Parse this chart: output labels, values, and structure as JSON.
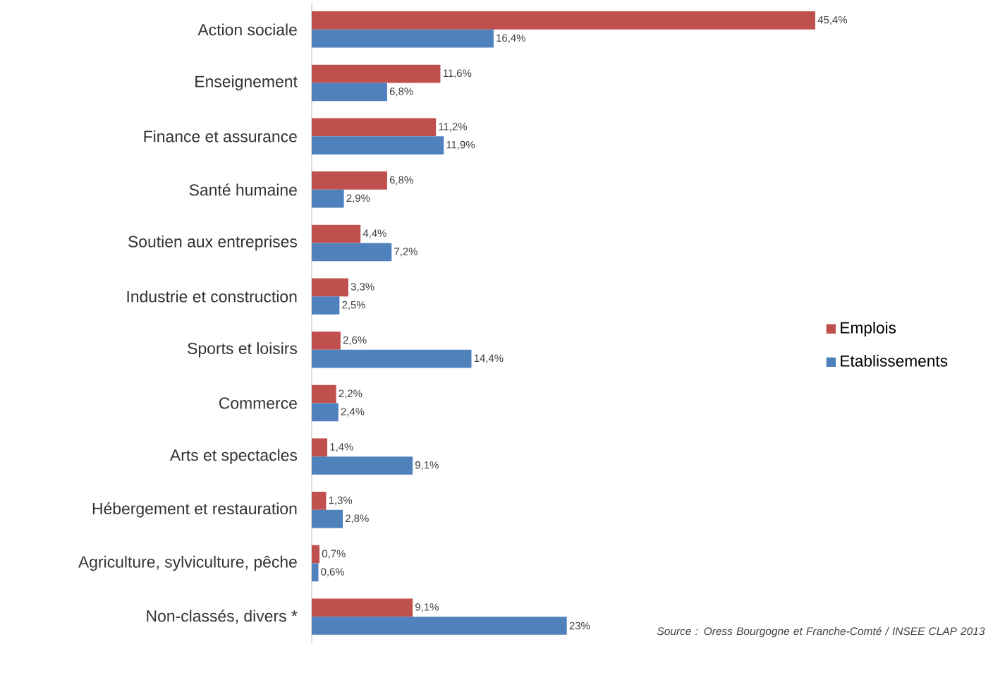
{
  "chart_data": {
    "type": "bar",
    "orientation": "horizontal",
    "tick_labels": "y",
    "legend": "right",
    "categories": [
      "Action sociale",
      "Enseignement",
      "Finance et assurance",
      "Santé humaine",
      "Soutien aux entreprises",
      "Industrie et construction",
      "Sports et loisirs",
      "Commerce",
      "Arts et spectacles",
      "Hébergement et restauration",
      "Agriculture, sylviculture, pêche",
      "Non-classés, divers *"
    ],
    "series": [
      {
        "name": "Emplois",
        "color": "#c0504d",
        "values": [
          45.4,
          11.6,
          11.2,
          6.8,
          4.4,
          3.3,
          2.6,
          2.2,
          1.4,
          1.3,
          0.7,
          9.1
        ],
        "value_labels": [
          "45,4%",
          "11,6%",
          "11,2%",
          "6,8%",
          "4,4%",
          "3,3%",
          "2,6%",
          "2,2%",
          "1,4%",
          "1,3%",
          "0,7%",
          "9,1%"
        ]
      },
      {
        "name": "Etablissements",
        "color": "#4f81bd",
        "values": [
          16.4,
          6.8,
          11.9,
          2.9,
          7.2,
          2.5,
          14.4,
          2.4,
          9.1,
          2.8,
          0.6,
          23
        ],
        "value_labels": [
          "16,4%",
          "6,8%",
          "11,9%",
          "2,9%",
          "7,2%",
          "2,5%",
          "14,4%",
          "2,4%",
          "9,1%",
          "2,8%",
          "0,6%",
          "23%"
        ]
      }
    ],
    "annotations": [
      "Source : Oress Bourgogne et Franche-Comté / INSEE CLAP 2013"
    ]
  }
}
